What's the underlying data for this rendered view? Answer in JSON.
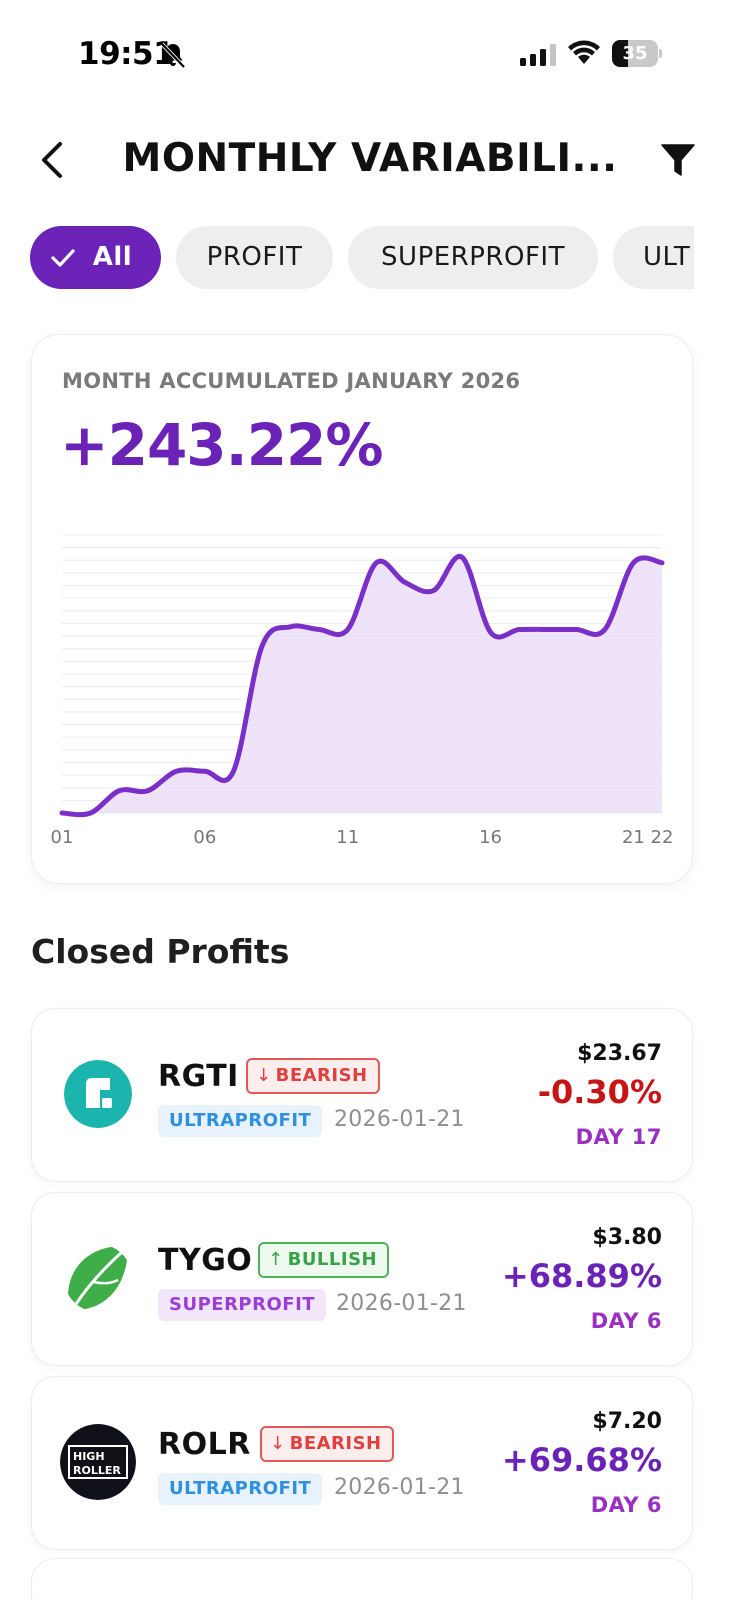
{
  "status_bar": {
    "time": "19:51",
    "battery_level": "35",
    "battery_fraction": 0.35
  },
  "header": {
    "title": "MONTHLY VARIABILI...",
    "back_icon": "chevron-left-icon",
    "filter_icon": "funnel-icon"
  },
  "filters": {
    "chips": [
      {
        "label": "All",
        "active": true
      },
      {
        "label": "PROFIT",
        "active": false
      },
      {
        "label": "SUPERPROFIT",
        "active": false
      },
      {
        "label": "ULT",
        "active": false
      }
    ]
  },
  "summary": {
    "subtitle": "MONTH ACCUMULATED JANUARY 2026",
    "value": "+243.22%"
  },
  "chart_data": {
    "type": "area",
    "title": "",
    "xlabel": "",
    "ylabel": "",
    "x_tick_labels": [
      "01",
      "06",
      "11",
      "16",
      "21",
      "22"
    ],
    "x": [
      1,
      2,
      3,
      4,
      5,
      6,
      7,
      8,
      9,
      10,
      11,
      12,
      13,
      14,
      15,
      16,
      17,
      18,
      19,
      20,
      21,
      22
    ],
    "y": [
      0,
      0,
      8,
      8,
      15,
      15,
      15,
      60,
      67,
      66,
      66,
      90,
      83,
      80,
      92,
      65,
      66,
      66,
      66,
      66,
      90,
      90
    ],
    "xlim": [
      1,
      22
    ],
    "ylim": [
      0,
      100
    ],
    "y_axis_labels_visible": false,
    "grid": true,
    "line_color": "#7b2fc9",
    "fill_color": "#ead9f7"
  },
  "closed_profits": {
    "title": "Closed Profits",
    "items": [
      {
        "ticker": "RGTI",
        "trend": "BEARISH",
        "trend_arrow": "↓",
        "tier": "ULTRAPROFIT",
        "date": "2026-01-21",
        "price": "$23.67",
        "change": "-0.30%",
        "day": "DAY 17",
        "logo_icon": "rigetti-logo-icon"
      },
      {
        "ticker": "TYGO",
        "trend": "BULLISH",
        "trend_arrow": "↑",
        "tier": "SUPERPROFIT",
        "date": "2026-01-21",
        "price": "$3.80",
        "change": "+68.89%",
        "day": "DAY 6",
        "logo_icon": "leaf-logo-icon"
      },
      {
        "ticker": "ROLR",
        "trend": "BEARISH",
        "trend_arrow": "↓",
        "tier": "ULTRAPROFIT",
        "date": "2026-01-21",
        "price": "$7.20",
        "change": "+69.68%",
        "day": "DAY 6",
        "logo_icon": "high-roller-logo-icon",
        "logo_text_1": "HIGH",
        "logo_text_2": "ROLLER"
      }
    ]
  },
  "colors": {
    "brand_purple": "#6b22b6",
    "negative_red": "#c81414",
    "bearish_red": "#e04040",
    "bullish_green": "#38a246",
    "ultra_blue": "#2f8fe0",
    "super_purple": "#9a3ed6"
  }
}
